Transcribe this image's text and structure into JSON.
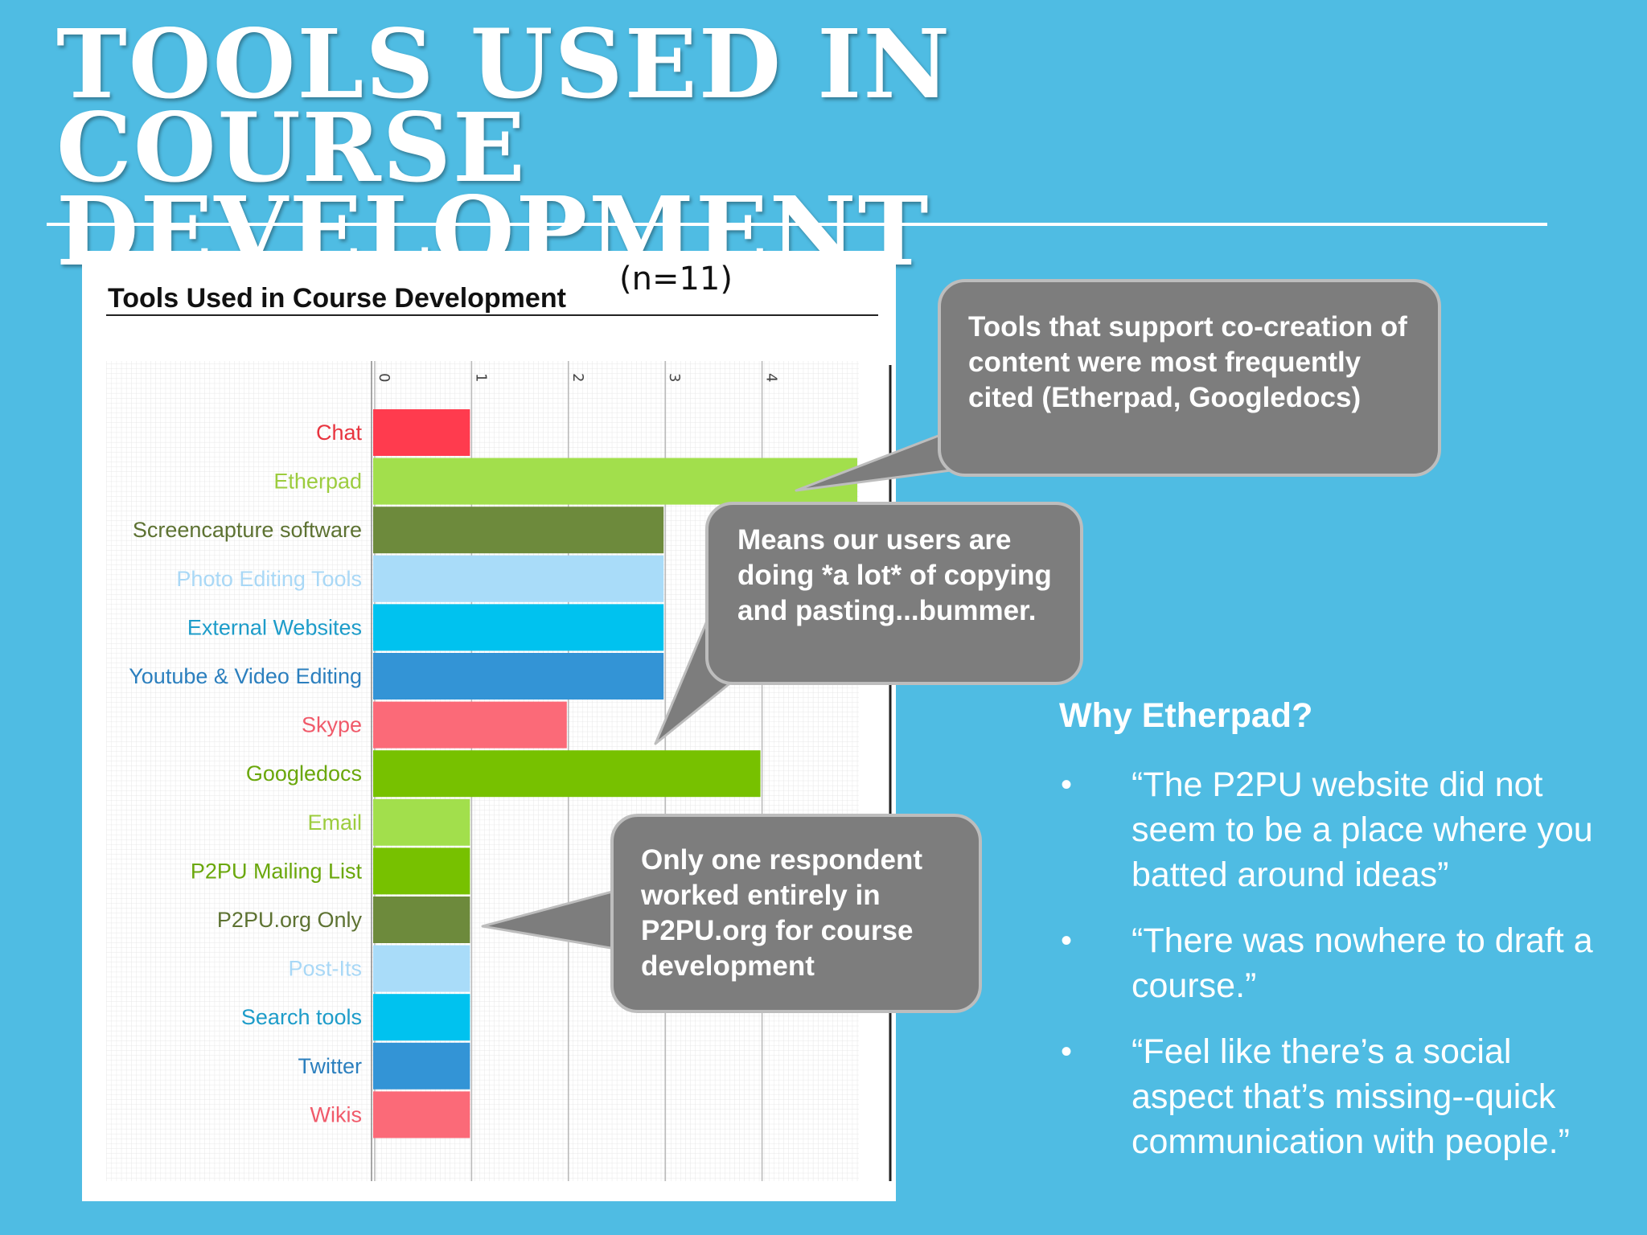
{
  "slide": {
    "title": "TOOLS USED IN COURSE DEVELOPMENT"
  },
  "chart_data": {
    "type": "bar",
    "orientation": "horizontal",
    "title": "Tools Used in Course Development",
    "note": "(n=11)",
    "xlabel": "",
    "ylabel": "",
    "xlim": [
      0,
      5
    ],
    "x_ticks": [
      "0",
      "1",
      "2",
      "3",
      "4"
    ],
    "grid": true,
    "categories": [
      "Chat",
      "Etherpad",
      "Screencapture software",
      "Photo Editing Tools",
      "External Websites",
      "Youtube & Video Editing",
      "Skype",
      "Googledocs",
      "Email",
      "P2PU Mailing List",
      "P2PU.org Only",
      "Post-Its",
      "Search tools",
      "Twitter",
      "Wikis"
    ],
    "values": [
      1,
      5,
      3,
      3,
      3,
      3,
      2,
      4,
      1,
      1,
      1,
      1,
      1,
      1,
      1
    ],
    "colors": [
      "#ff3b4e",
      "#a2df4c",
      "#6d8a3c",
      "#a9dcf9",
      "#00c2ef",
      "#3394d6",
      "#fb6a78",
      "#77c100",
      "#a2df4c",
      "#77c100",
      "#6d8a3c",
      "#a9dcf9",
      "#00c2ef",
      "#3394d6",
      "#fb6a78"
    ],
    "label_colors": [
      "#e8343f",
      "#9ccc3e",
      "#5d7232",
      "#a9d8f6",
      "#1d9cc9",
      "#2b7fbe",
      "#f05a6a",
      "#6aa70b",
      "#9ccc3e",
      "#6aa70b",
      "#5d7232",
      "#a9d8f6",
      "#1d9cc9",
      "#2b7fbe",
      "#f05a6a"
    ]
  },
  "callouts": [
    {
      "text": "Tools that support co-creation of content were most frequently cited (Etherpad, Googledocs)"
    },
    {
      "text": "Means our users are doing *a lot* of copying and pasting...bummer."
    },
    {
      "text": "Only one respondent worked entirely in P2PU.org for course development"
    }
  ],
  "why": {
    "heading": "Why Etherpad?",
    "bullet_glyph": "•",
    "quotes": [
      "“The P2PU website did not seem to be a place where you batted around ideas”",
      "“There was nowhere to draft a course.”",
      "“Feel like there’s a social aspect that’s missing--quick communication with people.”"
    ]
  },
  "colors": {
    "background": "#4FBCE3",
    "callout_fill": "#7d7d7d",
    "callout_border": "#bdbdbd"
  }
}
